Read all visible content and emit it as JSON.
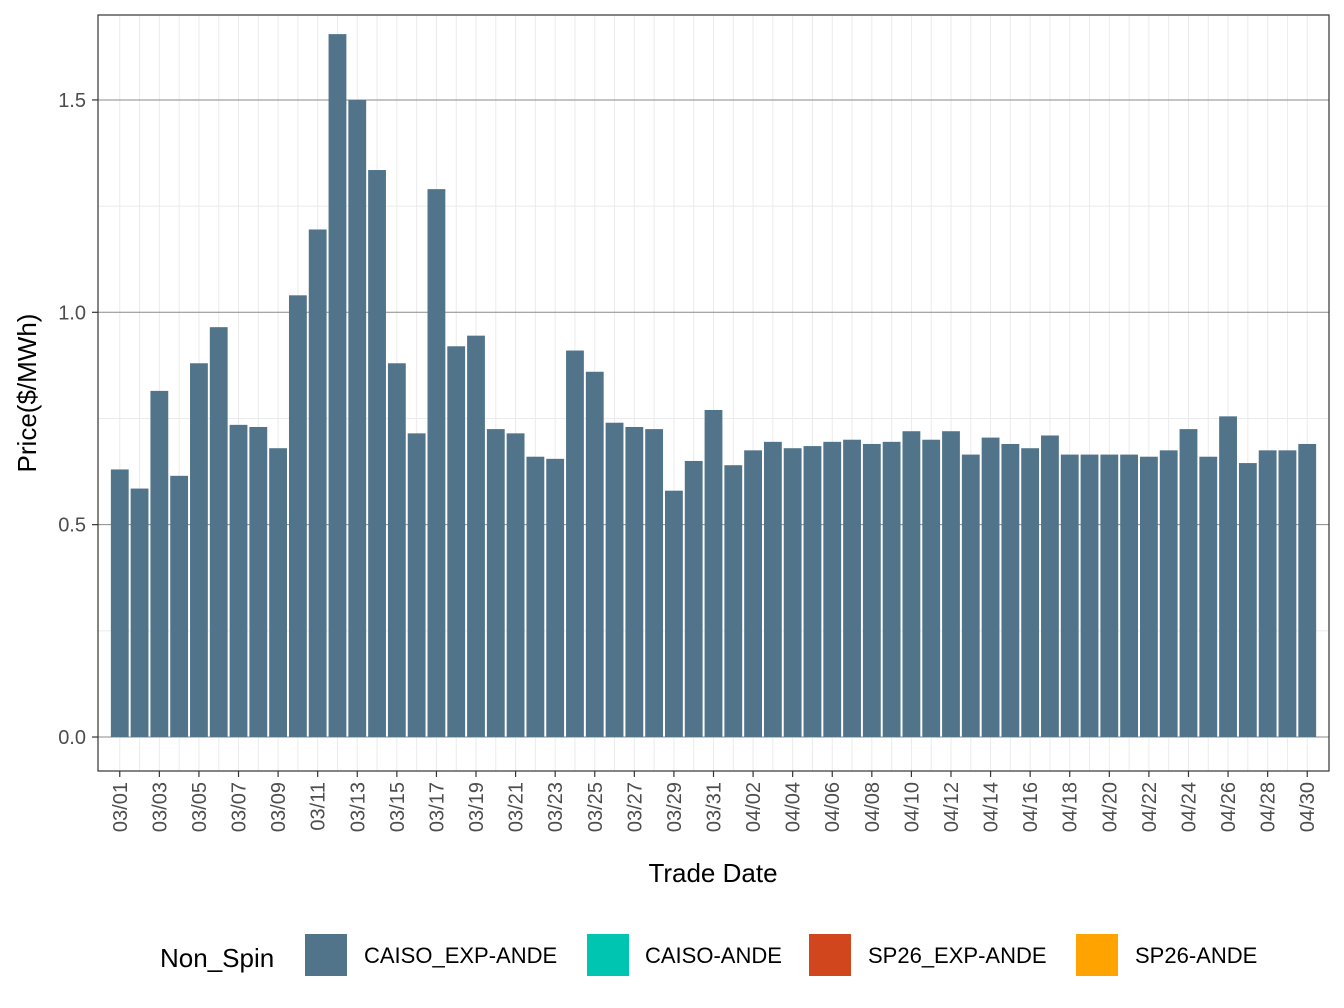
{
  "chart_data": {
    "type": "bar",
    "title": "",
    "xlabel": "Trade Date",
    "ylabel": "Price($/MWh)",
    "ylim": [
      -0.08,
      1.7
    ],
    "yticks": [
      0.0,
      0.5,
      1.0,
      1.5
    ],
    "ytick_labels": [
      "0.0",
      "0.5",
      "1.0",
      "1.5"
    ],
    "grid": true,
    "legend_position": "bottom",
    "legend_title": "Non_Spin",
    "legend": [
      {
        "label": "CAISO_EXP-ANDE",
        "color": "#51748a"
      },
      {
        "label": "CAISO-ANDE",
        "color": "#00c5b0"
      },
      {
        "label": "SP26_EXP-ANDE",
        "color": "#d2461e"
      },
      {
        "label": "SP26-ANDE",
        "color": "#ffa300"
      }
    ],
    "x_tick_labels": [
      "03/01",
      "03/03",
      "03/05",
      "03/07",
      "03/09",
      "03/11",
      "03/13",
      "03/15",
      "03/17",
      "03/19",
      "03/21",
      "03/23",
      "03/25",
      "03/27",
      "03/29",
      "03/31",
      "04/02",
      "04/04",
      "04/06",
      "04/08",
      "04/10",
      "04/12",
      "04/14",
      "04/16",
      "04/18",
      "04/20",
      "04/22",
      "04/24",
      "04/26",
      "04/28",
      "04/30"
    ],
    "categories": [
      "03/01",
      "03/02",
      "03/03",
      "03/04",
      "03/05",
      "03/06",
      "03/07",
      "03/08",
      "03/09",
      "03/10",
      "03/11",
      "03/12",
      "03/13",
      "03/14",
      "03/15",
      "03/16",
      "03/17",
      "03/18",
      "03/19",
      "03/20",
      "03/21",
      "03/22",
      "03/23",
      "03/24",
      "03/25",
      "03/26",
      "03/27",
      "03/28",
      "03/29",
      "03/30",
      "03/31",
      "04/01",
      "04/02",
      "04/03",
      "04/04",
      "04/05",
      "04/06",
      "04/07",
      "04/08",
      "04/09",
      "04/10",
      "04/11",
      "04/12",
      "04/13",
      "04/14",
      "04/15",
      "04/16",
      "04/17",
      "04/18",
      "04/19",
      "04/20",
      "04/21",
      "04/22",
      "04/23",
      "04/24",
      "04/25",
      "04/26",
      "04/27",
      "04/28",
      "04/29",
      "04/30"
    ],
    "series": [
      {
        "name": "CAISO_EXP-ANDE",
        "color": "#51748a",
        "values": [
          0.63,
          0.585,
          0.815,
          0.615,
          0.88,
          0.965,
          0.735,
          0.73,
          0.68,
          1.04,
          1.195,
          1.655,
          1.5,
          1.335,
          0.88,
          0.715,
          1.29,
          0.92,
          0.945,
          0.725,
          0.715,
          0.66,
          0.655,
          0.91,
          0.86,
          0.74,
          0.73,
          0.725,
          0.58,
          0.65,
          0.77,
          0.64,
          0.675,
          0.695,
          0.68,
          0.685,
          0.695,
          0.7,
          0.69,
          0.695,
          0.72,
          0.7,
          0.72,
          0.665,
          0.705,
          0.69,
          0.68,
          0.71,
          0.665,
          0.665,
          0.665,
          0.665,
          0.66,
          0.675,
          0.725,
          0.66,
          0.755,
          0.645,
          0.675,
          0.675,
          0.69
        ]
      }
    ]
  }
}
